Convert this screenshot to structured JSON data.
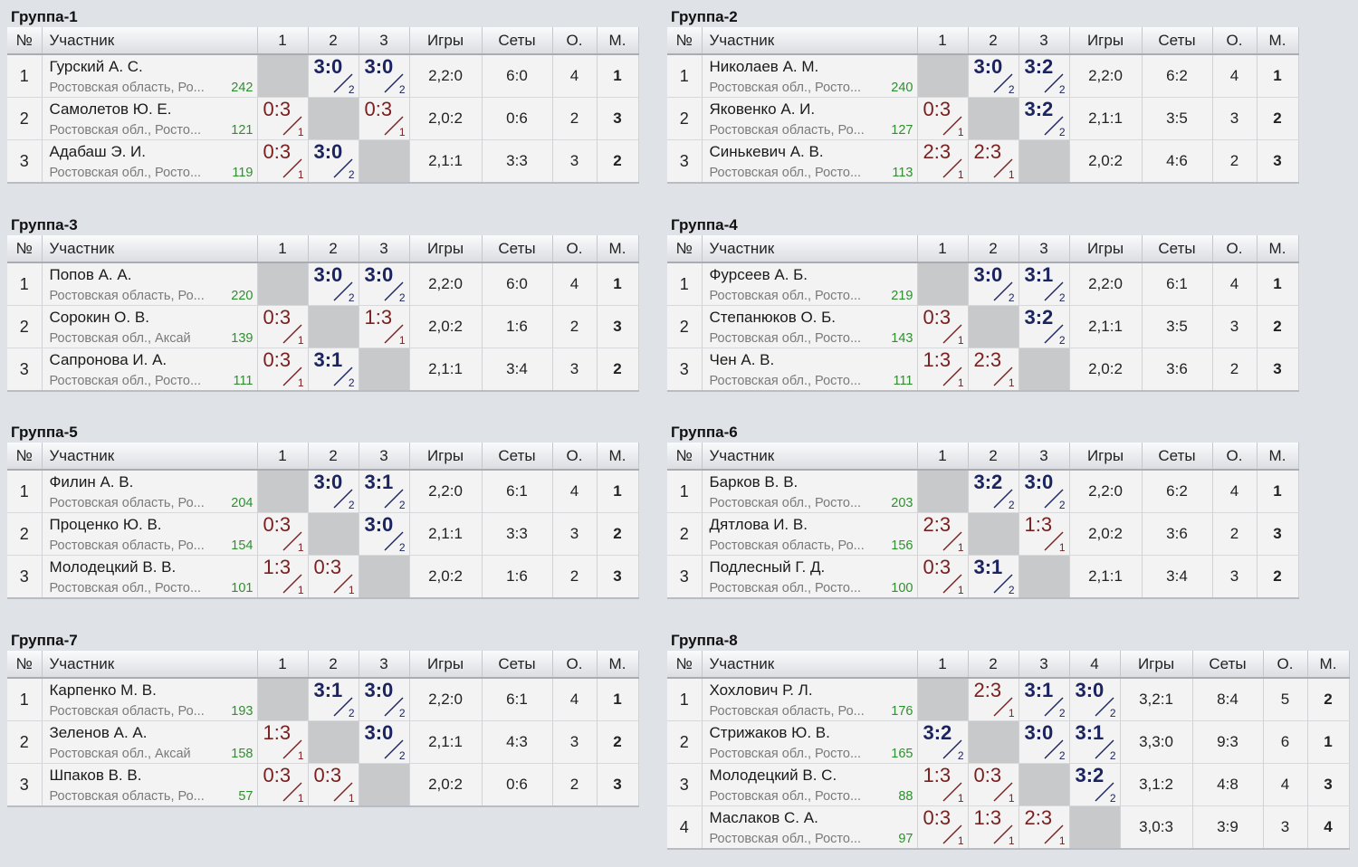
{
  "headers": {
    "no": "№",
    "player": "Участник",
    "games": "Игры",
    "sets": "Сеты",
    "points": "О.",
    "place": "М."
  },
  "groups": [
    {
      "title": "Группа-1",
      "rows": [
        {
          "no": "1",
          "name": "Гурский А. С.",
          "region": "Ростовская область, Ро...",
          "rating": "242",
          "results": [
            null,
            {
              "score": "3:0",
              "win": true,
              "frac": "2"
            },
            {
              "score": "3:0",
              "win": true,
              "frac": "2"
            }
          ],
          "games": "2,2:0",
          "sets": "6:0",
          "points": "4",
          "place": "1"
        },
        {
          "no": "2",
          "name": "Самолетов Ю. Е.",
          "region": "Ростовская обл., Росто...",
          "rating": "121",
          "results": [
            {
              "score": "0:3",
              "win": false,
              "frac": "1"
            },
            null,
            {
              "score": "0:3",
              "win": false,
              "frac": "1"
            }
          ],
          "games": "2,0:2",
          "sets": "0:6",
          "points": "2",
          "place": "3"
        },
        {
          "no": "3",
          "name": "Адабаш Э. И.",
          "region": "Ростовская обл., Росто...",
          "rating": "119",
          "results": [
            {
              "score": "0:3",
              "win": false,
              "frac": "1"
            },
            {
              "score": "3:0",
              "win": true,
              "frac": "2"
            },
            null
          ],
          "games": "2,1:1",
          "sets": "3:3",
          "points": "3",
          "place": "2"
        }
      ]
    },
    {
      "title": "Группа-2",
      "rows": [
        {
          "no": "1",
          "name": "Николаев А. М.",
          "region": "Ростовская обл., Росто...",
          "rating": "240",
          "results": [
            null,
            {
              "score": "3:0",
              "win": true,
              "frac": "2"
            },
            {
              "score": "3:2",
              "win": true,
              "frac": "2"
            }
          ],
          "games": "2,2:0",
          "sets": "6:2",
          "points": "4",
          "place": "1"
        },
        {
          "no": "2",
          "name": "Яковенко А. И.",
          "region": "Ростовская область, Ро...",
          "rating": "127",
          "results": [
            {
              "score": "0:3",
              "win": false,
              "frac": "1"
            },
            null,
            {
              "score": "3:2",
              "win": true,
              "frac": "2"
            }
          ],
          "games": "2,1:1",
          "sets": "3:5",
          "points": "3",
          "place": "2"
        },
        {
          "no": "3",
          "name": "Синькевич А. В.",
          "region": "Ростовская обл., Росто...",
          "rating": "113",
          "results": [
            {
              "score": "2:3",
              "win": false,
              "frac": "1"
            },
            {
              "score": "2:3",
              "win": false,
              "frac": "1"
            },
            null
          ],
          "games": "2,0:2",
          "sets": "4:6",
          "points": "2",
          "place": "3"
        }
      ]
    },
    {
      "title": "Группа-3",
      "rows": [
        {
          "no": "1",
          "name": "Попов А. А.",
          "region": "Ростовская область, Ро...",
          "rating": "220",
          "results": [
            null,
            {
              "score": "3:0",
              "win": true,
              "frac": "2"
            },
            {
              "score": "3:0",
              "win": true,
              "frac": "2"
            }
          ],
          "games": "2,2:0",
          "sets": "6:0",
          "points": "4",
          "place": "1"
        },
        {
          "no": "2",
          "name": "Сорокин О. В.",
          "region": "Ростовская обл., Аксай",
          "rating": "139",
          "results": [
            {
              "score": "0:3",
              "win": false,
              "frac": "1"
            },
            null,
            {
              "score": "1:3",
              "win": false,
              "frac": "1"
            }
          ],
          "games": "2,0:2",
          "sets": "1:6",
          "points": "2",
          "place": "3"
        },
        {
          "no": "3",
          "name": "Сапронова И. А.",
          "region": "Ростовская обл., Росто...",
          "rating": "111",
          "results": [
            {
              "score": "0:3",
              "win": false,
              "frac": "1"
            },
            {
              "score": "3:1",
              "win": true,
              "frac": "2"
            },
            null
          ],
          "games": "2,1:1",
          "sets": "3:4",
          "points": "3",
          "place": "2"
        }
      ]
    },
    {
      "title": "Группа-4",
      "rows": [
        {
          "no": "1",
          "name": "Фурсеев А. Б.",
          "region": "Ростовская обл., Росто...",
          "rating": "219",
          "results": [
            null,
            {
              "score": "3:0",
              "win": true,
              "frac": "2"
            },
            {
              "score": "3:1",
              "win": true,
              "frac": "2"
            }
          ],
          "games": "2,2:0",
          "sets": "6:1",
          "points": "4",
          "place": "1"
        },
        {
          "no": "2",
          "name": "Степанюков О. Б.",
          "region": "Ростовская обл., Росто...",
          "rating": "143",
          "results": [
            {
              "score": "0:3",
              "win": false,
              "frac": "1"
            },
            null,
            {
              "score": "3:2",
              "win": true,
              "frac": "2"
            }
          ],
          "games": "2,1:1",
          "sets": "3:5",
          "points": "3",
          "place": "2"
        },
        {
          "no": "3",
          "name": "Чен А. В.",
          "region": "Ростовская обл., Росто...",
          "rating": "111",
          "results": [
            {
              "score": "1:3",
              "win": false,
              "frac": "1"
            },
            {
              "score": "2:3",
              "win": false,
              "frac": "1"
            },
            null
          ],
          "games": "2,0:2",
          "sets": "3:6",
          "points": "2",
          "place": "3"
        }
      ]
    },
    {
      "title": "Группа-5",
      "rows": [
        {
          "no": "1",
          "name": "Филин А. В.",
          "region": "Ростовская область, Ро...",
          "rating": "204",
          "results": [
            null,
            {
              "score": "3:0",
              "win": true,
              "frac": "2"
            },
            {
              "score": "3:1",
              "win": true,
              "frac": "2"
            }
          ],
          "games": "2,2:0",
          "sets": "6:1",
          "points": "4",
          "place": "1"
        },
        {
          "no": "2",
          "name": "Проценко Ю. В.",
          "region": "Ростовская область, Ро...",
          "rating": "154",
          "results": [
            {
              "score": "0:3",
              "win": false,
              "frac": "1"
            },
            null,
            {
              "score": "3:0",
              "win": true,
              "frac": "2"
            }
          ],
          "games": "2,1:1",
          "sets": "3:3",
          "points": "3",
          "place": "2"
        },
        {
          "no": "3",
          "name": "Молодецкий В. В.",
          "region": "Ростовская обл., Росто...",
          "rating": "101",
          "results": [
            {
              "score": "1:3",
              "win": false,
              "frac": "1"
            },
            {
              "score": "0:3",
              "win": false,
              "frac": "1"
            },
            null
          ],
          "games": "2,0:2",
          "sets": "1:6",
          "points": "2",
          "place": "3"
        }
      ]
    },
    {
      "title": "Группа-6",
      "rows": [
        {
          "no": "1",
          "name": "Барков В. В.",
          "region": "Ростовская обл., Росто...",
          "rating": "203",
          "results": [
            null,
            {
              "score": "3:2",
              "win": true,
              "frac": "2"
            },
            {
              "score": "3:0",
              "win": true,
              "frac": "2"
            }
          ],
          "games": "2,2:0",
          "sets": "6:2",
          "points": "4",
          "place": "1"
        },
        {
          "no": "2",
          "name": "Дятлова И. В.",
          "region": "Ростовская область, Ро...",
          "rating": "156",
          "results": [
            {
              "score": "2:3",
              "win": false,
              "frac": "1"
            },
            null,
            {
              "score": "1:3",
              "win": false,
              "frac": "1"
            }
          ],
          "games": "2,0:2",
          "sets": "3:6",
          "points": "2",
          "place": "3"
        },
        {
          "no": "3",
          "name": "Подлесный Г. Д.",
          "region": "Ростовская обл., Росто...",
          "rating": "100",
          "results": [
            {
              "score": "0:3",
              "win": false,
              "frac": "1"
            },
            {
              "score": "3:1",
              "win": true,
              "frac": "2"
            },
            null
          ],
          "games": "2,1:1",
          "sets": "3:4",
          "points": "3",
          "place": "2"
        }
      ]
    },
    {
      "title": "Группа-7",
      "rows": [
        {
          "no": "1",
          "name": "Карпенко М. В.",
          "region": "Ростовская область, Ро...",
          "rating": "193",
          "results": [
            null,
            {
              "score": "3:1",
              "win": true,
              "frac": "2"
            },
            {
              "score": "3:0",
              "win": true,
              "frac": "2"
            }
          ],
          "games": "2,2:0",
          "sets": "6:1",
          "points": "4",
          "place": "1"
        },
        {
          "no": "2",
          "name": "Зеленов А. А.",
          "region": "Ростовская обл., Аксай",
          "rating": "158",
          "results": [
            {
              "score": "1:3",
              "win": false,
              "frac": "1"
            },
            null,
            {
              "score": "3:0",
              "win": true,
              "frac": "2"
            }
          ],
          "games": "2,1:1",
          "sets": "4:3",
          "points": "3",
          "place": "2"
        },
        {
          "no": "3",
          "name": "Шпаков В. В.",
          "region": "Ростовская область, Ро...",
          "rating": "57",
          "results": [
            {
              "score": "0:3",
              "win": false,
              "frac": "1"
            },
            {
              "score": "0:3",
              "win": false,
              "frac": "1"
            },
            null
          ],
          "games": "2,0:2",
          "sets": "0:6",
          "points": "2",
          "place": "3"
        }
      ]
    },
    {
      "title": "Группа-8",
      "rows": [
        {
          "no": "1",
          "name": "Хохлович Р. Л.",
          "region": "Ростовская область, Ро...",
          "rating": "176",
          "results": [
            null,
            {
              "score": "2:3",
              "win": false,
              "frac": "1"
            },
            {
              "score": "3:1",
              "win": true,
              "frac": "2"
            },
            {
              "score": "3:0",
              "win": true,
              "frac": "2"
            }
          ],
          "games": "3,2:1",
          "sets": "8:4",
          "points": "5",
          "place": "2"
        },
        {
          "no": "2",
          "name": "Стрижаков Ю. В.",
          "region": "Ростовская обл., Росто...",
          "rating": "165",
          "results": [
            {
              "score": "3:2",
              "win": true,
              "frac": "2"
            },
            null,
            {
              "score": "3:0",
              "win": true,
              "frac": "2"
            },
            {
              "score": "3:1",
              "win": true,
              "frac": "2"
            }
          ],
          "games": "3,3:0",
          "sets": "9:3",
          "points": "6",
          "place": "1"
        },
        {
          "no": "3",
          "name": "Молодецкий В. С.",
          "region": "Ростовская обл., Росто...",
          "rating": "88",
          "results": [
            {
              "score": "1:3",
              "win": false,
              "frac": "1"
            },
            {
              "score": "0:3",
              "win": false,
              "frac": "1"
            },
            null,
            {
              "score": "3:2",
              "win": true,
              "frac": "2"
            }
          ],
          "games": "3,1:2",
          "sets": "4:8",
          "points": "4",
          "place": "3"
        },
        {
          "no": "4",
          "name": "Маслаков С. А.",
          "region": "Ростовская обл., Росто...",
          "rating": "97",
          "results": [
            {
              "score": "0:3",
              "win": false,
              "frac": "1"
            },
            {
              "score": "1:3",
              "win": false,
              "frac": "1"
            },
            {
              "score": "2:3",
              "win": false,
              "frac": "1"
            },
            null
          ],
          "games": "3,0:3",
          "sets": "3:9",
          "points": "3",
          "place": "4"
        }
      ]
    }
  ]
}
